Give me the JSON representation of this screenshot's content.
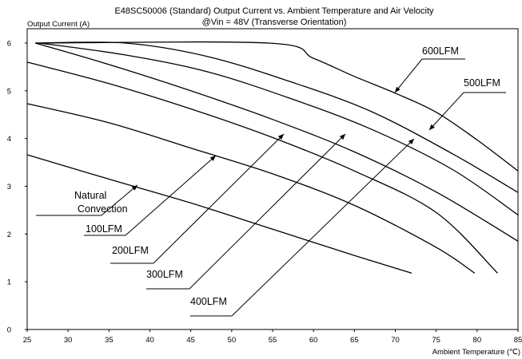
{
  "chart_data": {
    "type": "line",
    "title": "E48SC50006 (Standard)  Output Current vs. Ambient Temperature and Air Velocity",
    "subtitle": "@Vin = 48V (Transverse Orientation)",
    "ylabel": "Output Current (A)",
    "xlabel": "Ambient Temperature (℃)",
    "xlim": [
      25,
      85
    ],
    "ylim": [
      0,
      6.3
    ],
    "xticks": [
      "25",
      "30",
      "35",
      "40",
      "45",
      "50",
      "55",
      "60",
      "65",
      "70",
      "75",
      "80",
      "85"
    ],
    "yticks": [
      "0",
      "1",
      "2",
      "3",
      "4",
      "5",
      "6"
    ],
    "grid": false,
    "series": [
      {
        "name": "Natural Convection",
        "x": [
          25,
          35,
          45,
          55,
          65,
          72
        ],
        "y": [
          3.66,
          3.15,
          2.65,
          2.1,
          1.55,
          1.18
        ]
      },
      {
        "name": "100LFM",
        "x": [
          25,
          35,
          45,
          55,
          65,
          75,
          79.7
        ],
        "y": [
          4.73,
          4.33,
          3.8,
          3.26,
          2.6,
          1.72,
          1.18
        ]
      },
      {
        "name": "200LFM",
        "x": [
          25,
          35,
          45,
          55,
          65,
          75,
          82.5
        ],
        "y": [
          5.6,
          5.15,
          4.62,
          4.02,
          3.32,
          2.45,
          1.18
        ]
      },
      {
        "name": "300LFM",
        "x": [
          26,
          35,
          45,
          55,
          65,
          75,
          85
        ],
        "y": [
          6.0,
          5.55,
          5.0,
          4.4,
          3.72,
          2.88,
          1.85
        ]
      },
      {
        "name": "400LFM",
        "x": [
          26.5,
          37,
          47,
          57,
          67,
          77,
          85
        ],
        "y": [
          6.0,
          5.75,
          5.4,
          4.85,
          4.2,
          3.35,
          2.4
        ]
      },
      {
        "name": "500LFM",
        "x": [
          26,
          37,
          47,
          57,
          67,
          77,
          85
        ],
        "y": [
          6.0,
          6.0,
          5.72,
          5.2,
          4.57,
          3.68,
          2.87
        ]
      },
      {
        "name": "600LFM",
        "x": [
          26,
          54.5,
          60,
          65,
          70,
          75,
          80,
          85
        ],
        "y": [
          6.0,
          6.0,
          5.68,
          5.3,
          4.95,
          4.55,
          3.97,
          3.32
        ]
      }
    ],
    "annotations": [
      {
        "text": "Natural",
        "series": "Natural Convection"
      },
      {
        "text": "Convection",
        "series": "Natural Convection"
      },
      {
        "text": "100LFM",
        "series": "100LFM"
      },
      {
        "text": "200LFM",
        "series": "200LFM"
      },
      {
        "text": "300LFM",
        "series": "300LFM"
      },
      {
        "text": "400LFM",
        "series": "400LFM"
      },
      {
        "text": "500LFM",
        "series": "500LFM"
      },
      {
        "text": "600LFM",
        "series": "600LFM"
      }
    ],
    "colors": {
      "line": "#000000",
      "axis": "#000000",
      "background": "#ffffff"
    }
  }
}
